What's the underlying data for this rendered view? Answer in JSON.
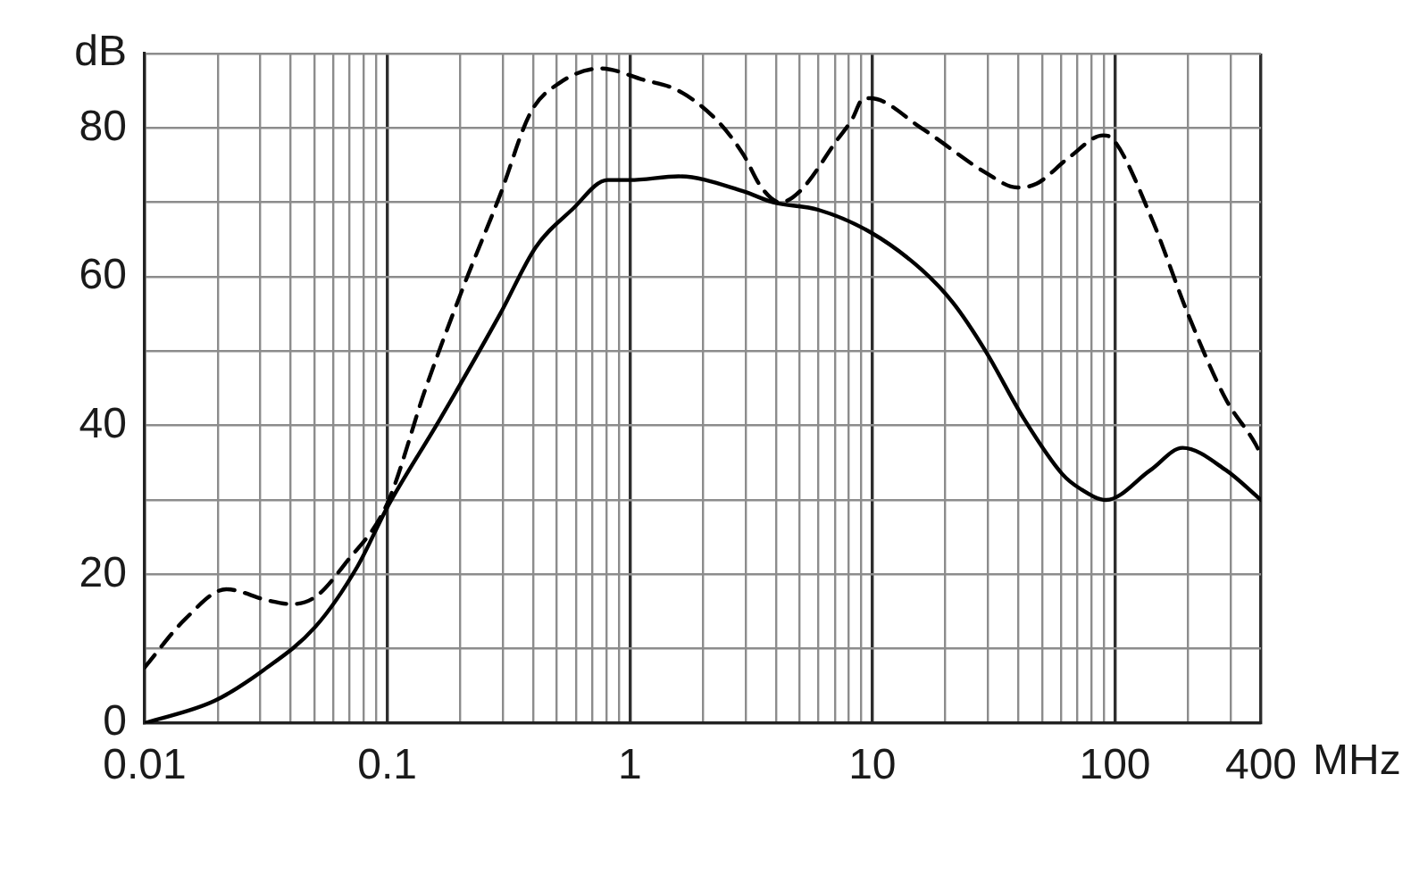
{
  "chart_data": {
    "type": "line",
    "xlabel": "MHz",
    "ylabel": "dB",
    "log": "x",
    "grid": true,
    "marker": "none",
    "xlim": [
      0.01,
      400
    ],
    "xticks": [
      0.01,
      {
        "value": 0.02,
        "label": null
      },
      {
        "value": 0.03,
        "label": null
      },
      {
        "value": 0.04,
        "label": null
      },
      {
        "value": 0.05,
        "label": null
      },
      {
        "value": 0.06,
        "label": null
      },
      {
        "value": 0.07,
        "label": null
      },
      {
        "value": 0.08,
        "label": null
      },
      {
        "value": 0.09,
        "label": null
      },
      0.1,
      {
        "value": 0.2,
        "label": null
      },
      {
        "value": 0.3,
        "label": null
      },
      {
        "value": 0.4,
        "label": null
      },
      {
        "value": 0.5,
        "label": null
      },
      {
        "value": 0.6,
        "label": null
      },
      {
        "value": 0.7,
        "label": null
      },
      {
        "value": 0.8,
        "label": null
      },
      {
        "value": 0.9,
        "label": null
      },
      1,
      {
        "value": 2,
        "label": null
      },
      {
        "value": 3,
        "label": null
      },
      {
        "value": 4,
        "label": null
      },
      {
        "value": 5,
        "label": null
      },
      {
        "value": 6,
        "label": null
      },
      {
        "value": 7,
        "label": null
      },
      {
        "value": 8,
        "label": null
      },
      {
        "value": 9,
        "label": null
      },
      10,
      {
        "value": 20,
        "label": null
      },
      {
        "value": 30,
        "label": null
      },
      {
        "value": 40,
        "label": null
      },
      {
        "value": 50,
        "label": null
      },
      {
        "value": 60,
        "label": null
      },
      {
        "value": 70,
        "label": null
      },
      {
        "value": 80,
        "label": null
      },
      {
        "value": 90,
        "label": null
      },
      100,
      {
        "value": 200,
        "label": null
      },
      {
        "value": 300,
        "label": null
      },
      400
    ],
    "ylim": [
      0,
      90
    ],
    "yticks": [
      0,
      {
        "value": 10,
        "label": null
      },
      20,
      {
        "value": 30,
        "label": null
      },
      40,
      {
        "value": 50,
        "label": null
      },
      60,
      {
        "value": 70,
        "label": null
      },
      80,
      {
        "value": 90,
        "label": null
      }
    ],
    "series": [
      {
        "color": "#000000",
        "line_style": "solid",
        "x": [
          0.01,
          0.0194,
          0.0305,
          0.0507,
          0.0752,
          0.1,
          0.166,
          0.292,
          0.41,
          0.577,
          0.81,
          1.0,
          1.59,
          2.93,
          3.9,
          5.98,
          9.8,
          15.9,
          21.5,
          29.3,
          42,
          60.6,
          72,
          92,
          140,
          190,
          287,
          400
        ],
        "values": [
          0,
          3,
          7,
          13,
          21,
          29,
          41,
          55,
          64,
          69,
          73,
          73,
          73.5,
          71.5,
          70,
          69,
          66,
          61,
          56.5,
          50,
          41,
          33.5,
          31.5,
          30,
          34,
          37,
          34,
          30
        ]
      },
      {
        "color": "#000000",
        "line_style": "dashed",
        "x": [
          0.01,
          0.0147,
          0.0217,
          0.0322,
          0.0404,
          0.0507,
          0.0673,
          0.1,
          0.144,
          0.208,
          0.292,
          0.389,
          0.51,
          0.76,
          1.13,
          1.59,
          2.29,
          2.93,
          3.49,
          4.17,
          5.03,
          7.2,
          8.2,
          9.23,
          9.8,
          15.9,
          29.3,
          39.5,
          47.5,
          64.5,
          89.3,
          98,
          141,
          200,
          287,
          380,
          400
        ],
        "values": [
          7.5,
          14,
          18,
          16.5,
          16,
          17,
          21.5,
          29.5,
          45,
          59,
          71,
          82,
          86,
          88,
          86.5,
          85,
          81,
          76.5,
          72,
          70,
          71.5,
          78.5,
          81,
          84,
          84,
          80,
          74,
          72,
          72.5,
          76,
          79,
          78.5,
          68,
          55,
          43.5,
          37.5,
          36
        ]
      }
    ]
  }
}
